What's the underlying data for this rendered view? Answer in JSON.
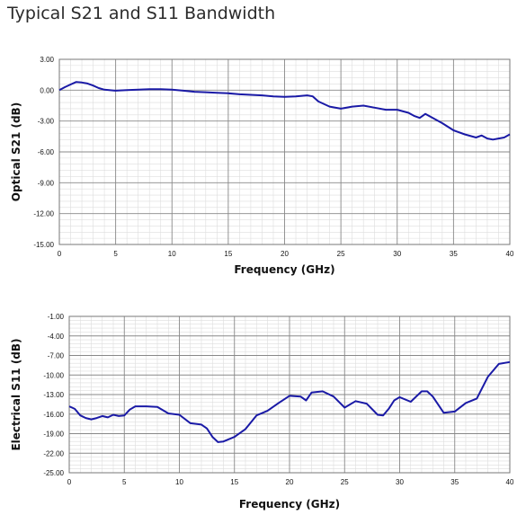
{
  "title": "Typical S21 and S11 Bandwidth",
  "colors": {
    "line": "#1a1aa6",
    "grid_major": "#888888",
    "grid_minor": "#dddddd",
    "frame": "#777777"
  },
  "chart_data": [
    {
      "type": "line",
      "ylabel": "Optical S21 (dB)",
      "xlabel": "Frequency (GHz)",
      "xlim": [
        0,
        40
      ],
      "ylim": [
        -15,
        3
      ],
      "xticks": [
        "0",
        "5",
        "10",
        "15",
        "20",
        "25",
        "30",
        "35",
        "40"
      ],
      "yticks": [
        "3.00",
        "0.00",
        "-3.00",
        "-6.00",
        "-9.00",
        "-12.00",
        "-15.00"
      ],
      "grid": true,
      "series": [
        {
          "x": [
            0,
            0.5,
            1,
            1.5,
            2,
            2.5,
            3,
            3.5,
            4,
            5,
            6,
            7,
            8,
            9,
            10,
            11,
            12,
            13,
            14,
            15,
            16,
            17,
            18,
            19,
            20,
            21,
            22,
            22.5,
            23,
            24,
            25,
            26,
            27,
            28,
            29,
            30,
            31,
            31.5,
            32,
            32.5,
            33,
            34,
            35,
            36,
            37,
            37.5,
            38,
            38.5,
            39,
            39.5,
            40
          ],
          "y": [
            0,
            0.3,
            0.55,
            0.8,
            0.75,
            0.65,
            0.45,
            0.2,
            0.05,
            -0.05,
            0,
            0.05,
            0.1,
            0.1,
            0.05,
            -0.05,
            -0.15,
            -0.2,
            -0.25,
            -0.3,
            -0.4,
            -0.45,
            -0.5,
            -0.6,
            -0.65,
            -0.6,
            -0.5,
            -0.6,
            -1.1,
            -1.6,
            -1.8,
            -1.6,
            -1.5,
            -1.7,
            -1.9,
            -1.9,
            -2.2,
            -2.5,
            -2.7,
            -2.3,
            -2.6,
            -3.2,
            -3.9,
            -4.3,
            -4.6,
            -4.4,
            -4.7,
            -4.8,
            -4.7,
            -4.6,
            -4.3
          ]
        }
      ]
    },
    {
      "type": "line",
      "ylabel": "Electrical S11 (dB)",
      "xlabel": "Frequency  (GHz)",
      "xlim": [
        0,
        40
      ],
      "ylim": [
        -25,
        -1
      ],
      "xticks": [
        "0",
        "5",
        "10",
        "15",
        "20",
        "25",
        "30",
        "35",
        "40"
      ],
      "yticks": [
        "-1.00",
        "-4.00",
        "-7.00",
        "-10.00",
        "-13.00",
        "-16.00",
        "-19.00",
        "-22.00",
        "-25.00"
      ],
      "grid": true,
      "series": [
        {
          "x": [
            0,
            0.5,
            1,
            1.5,
            2,
            2.5,
            3,
            3.5,
            4,
            4.5,
            5,
            5.5,
            6,
            7,
            8,
            9,
            10,
            11,
            12,
            12.5,
            13,
            13.5,
            14,
            15,
            16,
            17,
            18,
            19,
            20,
            21,
            21.5,
            22,
            23,
            24,
            25,
            26,
            27,
            28,
            28.5,
            29,
            29.5,
            30,
            31,
            32,
            32.5,
            33,
            34,
            35,
            36,
            37,
            38,
            39,
            40
          ],
          "y": [
            -14.8,
            -15.2,
            -16.2,
            -16.6,
            -16.8,
            -16.6,
            -16.3,
            -16.5,
            -16.1,
            -16.3,
            -16.2,
            -15.3,
            -14.8,
            -14.8,
            -14.9,
            -15.9,
            -16.1,
            -17.4,
            -17.6,
            -18.2,
            -19.5,
            -20.3,
            -20.2,
            -19.5,
            -18.3,
            -16.2,
            -15.5,
            -14.3,
            -13.2,
            -13.3,
            -13.9,
            -12.7,
            -12.5,
            -13.3,
            -15.0,
            -14.0,
            -14.4,
            -16.1,
            -16.2,
            -15.2,
            -13.9,
            -13.4,
            -14.1,
            -12.5,
            -12.5,
            -13.3,
            -15.8,
            -15.6,
            -14.3,
            -13.6,
            -10.3,
            -8.3,
            -8.0
          ]
        }
      ]
    }
  ]
}
